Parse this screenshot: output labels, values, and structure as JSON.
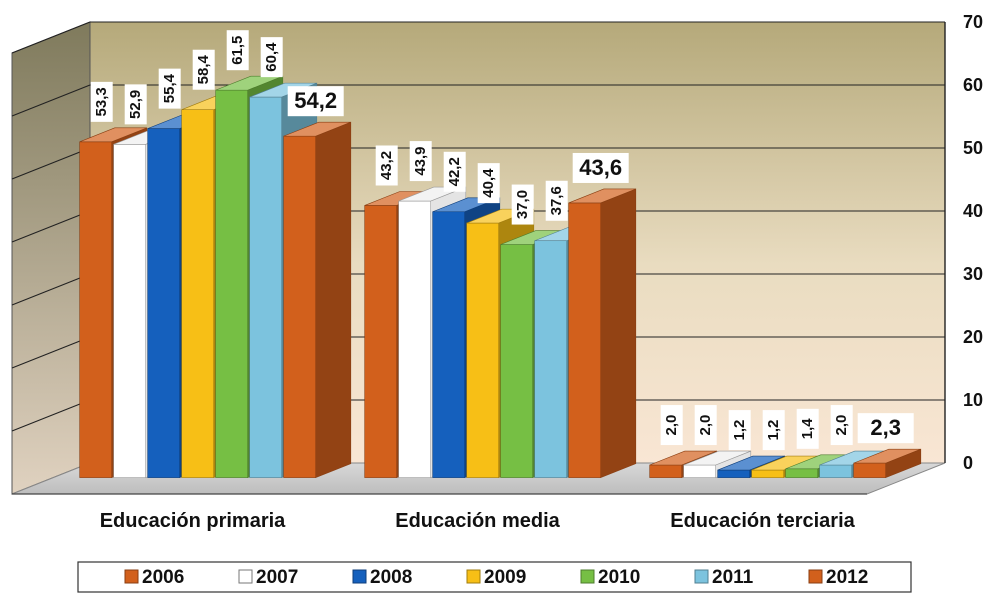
{
  "chart_data": {
    "type": "bar",
    "categories": [
      "Educación primaria",
      "Educación media",
      "Educación terciaria"
    ],
    "series": [
      {
        "name": "2006",
        "color": "#d2601c",
        "values": [
          53.3,
          43.2,
          2.0
        ],
        "labels": [
          "53,3",
          "43,2",
          "2,0"
        ]
      },
      {
        "name": "2007",
        "color": "#ffffff",
        "values": [
          52.9,
          43.9,
          2.0
        ],
        "labels": [
          "52,9",
          "43,9",
          "2,0"
        ]
      },
      {
        "name": "2008",
        "color": "#1560bd",
        "values": [
          55.4,
          42.2,
          1.2
        ],
        "labels": [
          "55,4",
          "42,2",
          "1,2"
        ]
      },
      {
        "name": "2009",
        "color": "#f7bf16",
        "values": [
          58.4,
          40.4,
          1.2
        ],
        "labels": [
          "58,4",
          "40,4",
          "1,2"
        ]
      },
      {
        "name": "2010",
        "color": "#76bf44",
        "values": [
          61.5,
          37.0,
          1.4
        ],
        "labels": [
          "61,5",
          "37,0",
          "1,4"
        ]
      },
      {
        "name": "2011",
        "color": "#7cc3de",
        "values": [
          60.4,
          37.6,
          2.0
        ],
        "labels": [
          "60,4",
          "37,6",
          "2,0"
        ]
      },
      {
        "name": "2012",
        "color": "#d2601c",
        "values": [
          54.2,
          43.6,
          2.3
        ],
        "labels": [
          "54,2",
          "43,6",
          "2,3"
        ]
      }
    ],
    "ylim": [
      0,
      70
    ],
    "yticks": [
      "0",
      "10",
      "20",
      "30",
      "40",
      "50",
      "60",
      "70"
    ],
    "grid": true,
    "legend_position": "bottom",
    "title": "",
    "xlabel": "",
    "ylabel": ""
  }
}
